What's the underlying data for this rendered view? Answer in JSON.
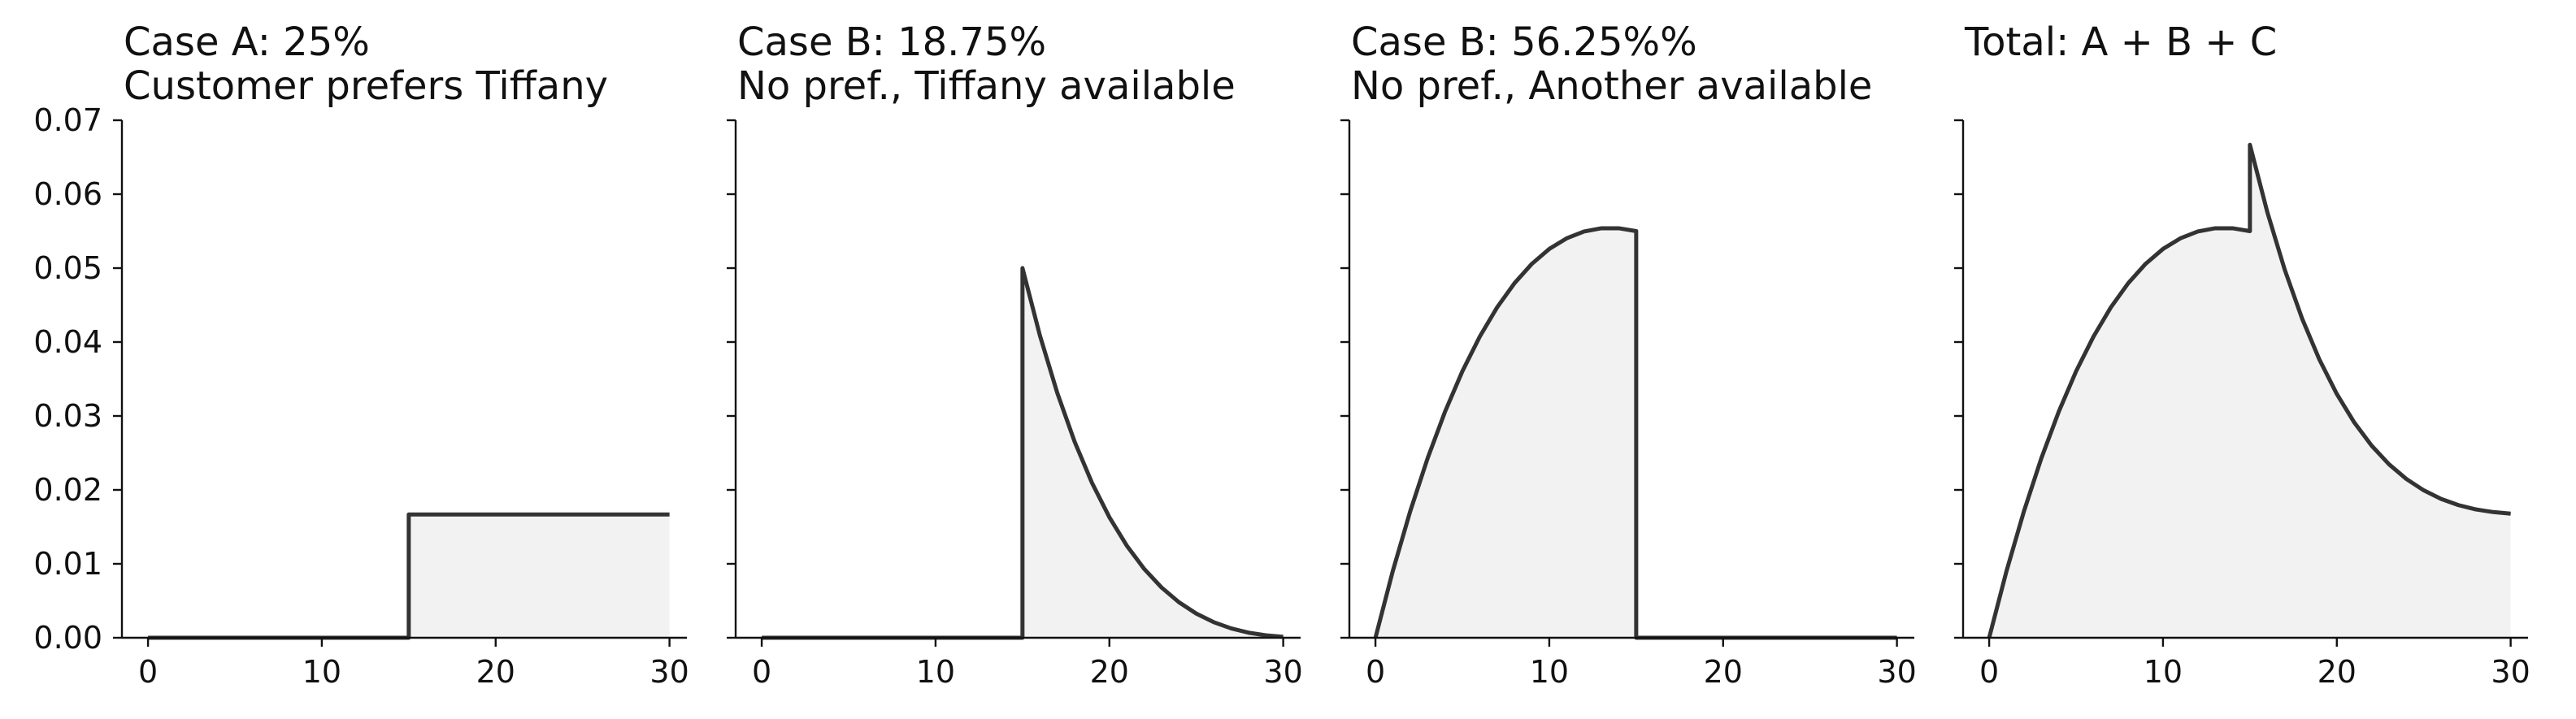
{
  "chart_data": [
    {
      "type": "area",
      "title_line1": "Case A: 25%",
      "title_line2": "Customer prefers Tiffany",
      "xlim": [
        -1.5,
        31
      ],
      "ylim": [
        0,
        0.07
      ],
      "xticks": [
        0,
        10,
        20,
        30
      ],
      "yticks": [
        0.0,
        0.01,
        0.02,
        0.03,
        0.04,
        0.05,
        0.06,
        0.07
      ],
      "show_yticklabels": true,
      "points": [
        [
          0,
          0
        ],
        [
          15,
          0
        ],
        [
          15,
          0.01667
        ],
        [
          30,
          0.01667
        ]
      ]
    },
    {
      "type": "area",
      "title_line1": "Case B: 18.75%",
      "title_line2": "No pref., Tiffany available",
      "xlim": [
        -1.5,
        31
      ],
      "ylim": [
        0,
        0.07
      ],
      "xticks": [
        0,
        10,
        20,
        30
      ],
      "yticks": [
        0.0,
        0.01,
        0.02,
        0.03,
        0.04,
        0.05,
        0.06,
        0.07
      ],
      "show_yticklabels": false,
      "points": [
        [
          0,
          0
        ],
        [
          15,
          0
        ],
        [
          15,
          0.05
        ],
        [
          16,
          0.04091
        ],
        [
          17,
          0.03313
        ],
        [
          18,
          0.02652
        ],
        [
          19,
          0.02095
        ],
        [
          20,
          0.0163
        ],
        [
          21,
          0.01246
        ],
        [
          22,
          0.00932
        ],
        [
          23,
          0.0068
        ],
        [
          24,
          0.00481
        ],
        [
          25,
          0.00327
        ],
        [
          26,
          0.00211
        ],
        [
          27,
          0.00127
        ],
        [
          28,
          0.00069
        ],
        [
          29,
          0.00033
        ],
        [
          30,
          0.00012
        ]
      ]
    },
    {
      "type": "area",
      "title_line1": "Case B: 56.25%%",
      "title_line2": "No pref., Another available",
      "xlim": [
        -1.5,
        31
      ],
      "ylim": [
        0,
        0.07
      ],
      "xticks": [
        0,
        10,
        20,
        30
      ],
      "yticks": [
        0.0,
        0.01,
        0.02,
        0.03,
        0.04,
        0.05,
        0.06,
        0.07
      ],
      "show_yticklabels": false,
      "points": [
        [
          0,
          0
        ],
        [
          1,
          0.00904
        ],
        [
          2,
          0.01711
        ],
        [
          3,
          0.02427
        ],
        [
          4,
          0.03056
        ],
        [
          5,
          0.03604
        ],
        [
          6,
          0.04073
        ],
        [
          7,
          0.04469
        ],
        [
          8,
          0.04796
        ],
        [
          9,
          0.05058
        ],
        [
          10,
          0.05259
        ],
        [
          11,
          0.05403
        ],
        [
          12,
          0.05495
        ],
        [
          13,
          0.05539
        ],
        [
          14,
          0.05539
        ],
        [
          15,
          0.055
        ],
        [
          15,
          0
        ],
        [
          30,
          0
        ]
      ]
    },
    {
      "type": "area",
      "title_line1": "Total: A + B + C",
      "title_line2": "",
      "xlim": [
        -1.5,
        31
      ],
      "ylim": [
        0,
        0.07
      ],
      "xticks": [
        0,
        10,
        20,
        30
      ],
      "yticks": [
        0.0,
        0.01,
        0.02,
        0.03,
        0.04,
        0.05,
        0.06,
        0.07
      ],
      "show_yticklabels": false,
      "points": [
        [
          0,
          0
        ],
        [
          1,
          0.00904
        ],
        [
          2,
          0.01711
        ],
        [
          3,
          0.02427
        ],
        [
          4,
          0.03056
        ],
        [
          5,
          0.03604
        ],
        [
          6,
          0.04073
        ],
        [
          7,
          0.04469
        ],
        [
          8,
          0.04796
        ],
        [
          9,
          0.05058
        ],
        [
          10,
          0.05259
        ],
        [
          11,
          0.05403
        ],
        [
          12,
          0.05495
        ],
        [
          13,
          0.05539
        ],
        [
          14,
          0.05539
        ],
        [
          15,
          0.055
        ],
        [
          15,
          0.06667
        ],
        [
          16,
          0.05758
        ],
        [
          17,
          0.0498
        ],
        [
          18,
          0.04319
        ],
        [
          19,
          0.03762
        ],
        [
          20,
          0.03297
        ],
        [
          21,
          0.02913
        ],
        [
          22,
          0.02599
        ],
        [
          23,
          0.02347
        ],
        [
          24,
          0.02148
        ],
        [
          25,
          0.01994
        ],
        [
          26,
          0.01878
        ],
        [
          27,
          0.01794
        ],
        [
          28,
          0.01736
        ],
        [
          29,
          0.017
        ],
        [
          30,
          0.01679
        ]
      ]
    }
  ],
  "style": {
    "line_color": "#333333",
    "fill_color": "#f2f2f2",
    "axis_color": "#111111",
    "text_color": "#111111"
  }
}
